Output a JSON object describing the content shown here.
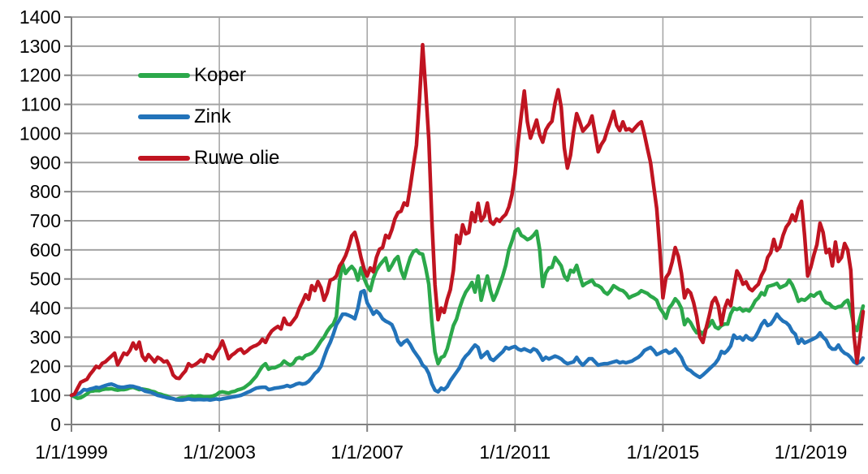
{
  "chart_data": {
    "type": "line",
    "title": "",
    "xlabel": "",
    "ylabel": "",
    "x_start": "1/1/1999",
    "x_end": "6/1/2020",
    "x_frequency": "monthly",
    "ylim": [
      0,
      1400
    ],
    "y_tick_step": 100,
    "y_tick_labels": [
      "0",
      "100",
      "200",
      "300",
      "400",
      "500",
      "600",
      "700",
      "800",
      "900",
      "1000",
      "1100",
      "1200",
      "1300",
      "1400"
    ],
    "x_ticks": [
      {
        "label": "1/1/1999",
        "month_index": 0
      },
      {
        "label": "1/1/2003",
        "month_index": 48
      },
      {
        "label": "1/1/2007",
        "month_index": 96
      },
      {
        "label": "1/1/2011",
        "month_index": 144
      },
      {
        "label": "1/1/2015",
        "month_index": 192
      },
      {
        "label": "1/1/2019",
        "month_index": 240
      }
    ],
    "grid": true,
    "grid_color": "#A3A3A3",
    "axis_color": "#808080",
    "legend_position": "top-left",
    "series": [
      {
        "name": "Koper",
        "color": "#2BA84A",
        "values": [
          100,
          95,
          90,
          92,
          98,
          105,
          114,
          115,
          118,
          116,
          120,
          122,
          122,
          123,
          120,
          118,
          120,
          120,
          122,
          126,
          128,
          124,
          120,
          122,
          120,
          118,
          114,
          112,
          106,
          104,
          100,
          98,
          92,
          88,
          86,
          90,
          92,
          92,
          96,
          98,
          96,
          98,
          98,
          95,
          95,
          96,
          98,
          102,
          110,
          112,
          110,
          108,
          112,
          114,
          119,
          122,
          126,
          134,
          142,
          154,
          166,
          184,
          200,
          209,
          190,
          195,
          195,
          200,
          205,
          218,
          210,
          204,
          210,
          226,
          230,
          226,
          237,
          240,
          245,
          255,
          270,
          287,
          300,
          320,
          335,
          345,
          371,
          491,
          552,
          519,
          533,
          543,
          530,
          496,
          538,
          502,
          477,
          460,
          502,
          530,
          547,
          560,
          572,
          530,
          547,
          566,
          577,
          530,
          502,
          540,
          574,
          594,
          599,
          588,
          585,
          538,
          482,
          350,
          250,
          209,
          230,
          235,
          260,
          300,
          340,
          362,
          400,
          431,
          455,
          470,
          488,
          455,
          510,
          427,
          470,
          510,
          460,
          427,
          450,
          480,
          510,
          547,
          600,
          630,
          664,
          672,
          650,
          644,
          635,
          640,
          650,
          664,
          600,
          474,
          520,
          538,
          540,
          574,
          560,
          545,
          510,
          496,
          530,
          524,
          547,
          510,
          477,
          485,
          490,
          496,
          480,
          477,
          470,
          455,
          448,
          460,
          477,
          470,
          463,
          460,
          450,
          435,
          441,
          445,
          450,
          460,
          455,
          450,
          441,
          435,
          427,
          400,
          385,
          365,
          400,
          413,
          432,
          420,
          399,
          343,
          362,
          350,
          330,
          315,
          320,
          310,
          330,
          340,
          357,
          335,
          329,
          340,
          345,
          345,
          380,
          400,
          395,
          400,
          390,
          395,
          390,
          405,
          425,
          435,
          453,
          445,
          474,
          477,
          480,
          485,
          470,
          475,
          480,
          496,
          480,
          455,
          423,
          430,
          427,
          435,
          446,
          441,
          450,
          455,
          430,
          418,
          415,
          404,
          400,
          405,
          407,
          420,
          427,
          393,
          340,
          323,
          365,
          407
        ]
      },
      {
        "name": "Zink",
        "color": "#2273BA",
        "values": [
          100,
          102,
          105,
          110,
          120,
          118,
          122,
          124,
          128,
          126,
          130,
          134,
          137,
          139,
          135,
          130,
          128,
          128,
          130,
          132,
          131,
          128,
          125,
          120,
          114,
          112,
          110,
          105,
          100,
          98,
          95,
          92,
          90,
          89,
          85,
          84,
          84,
          86,
          88,
          86,
          85,
          86,
          86,
          85,
          86,
          84,
          86,
          88,
          86,
          88,
          90,
          92,
          94,
          96,
          98,
          100,
          105,
          110,
          114,
          120,
          125,
          127,
          128,
          128,
          120,
          122,
          125,
          126,
          128,
          130,
          134,
          130,
          134,
          139,
          142,
          139,
          141,
          148,
          160,
          175,
          184,
          200,
          231,
          260,
          282,
          310,
          343,
          360,
          379,
          379,
          375,
          370,
          363,
          400,
          455,
          460,
          418,
          400,
          379,
          390,
          380,
          363,
          355,
          350,
          343,
          320,
          287,
          273,
          284,
          290,
          275,
          255,
          240,
          225,
          204,
          195,
          175,
          140,
          118,
          112,
          125,
          120,
          130,
          150,
          165,
          180,
          195,
          220,
          235,
          245,
          260,
          273,
          265,
          230,
          240,
          250,
          226,
          220,
          230,
          240,
          250,
          265,
          260,
          265,
          268,
          259,
          255,
          260,
          255,
          250,
          260,
          255,
          240,
          221,
          231,
          225,
          230,
          235,
          231,
          225,
          215,
          209,
          212,
          215,
          231,
          215,
          204,
          215,
          226,
          226,
          215,
          204,
          207,
          209,
          209,
          212,
          215,
          218,
          212,
          215,
          212,
          215,
          218,
          225,
          231,
          240,
          254,
          260,
          265,
          255,
          240,
          245,
          251,
          255,
          245,
          250,
          259,
          245,
          230,
          205,
          190,
          185,
          175,
          168,
          162,
          170,
          180,
          190,
          200,
          210,
          225,
          251,
          245,
          255,
          270,
          307,
          296,
          300,
          290,
          305,
          295,
          290,
          300,
          320,
          343,
          357,
          340,
          345,
          360,
          379,
          365,
          355,
          350,
          340,
          320,
          310,
          279,
          293,
          280,
          285,
          290,
          295,
          301,
          315,
          300,
          290,
          268,
          259,
          259,
          273,
          255,
          245,
          240,
          230,
          215,
          209,
          215,
          228
        ]
      },
      {
        "name": "Ruwe olie",
        "color": "#C01421",
        "values": [
          100,
          105,
          125,
          145,
          150,
          155,
          172,
          185,
          200,
          195,
          210,
          215,
          225,
          235,
          245,
          205,
          225,
          245,
          240,
          255,
          280,
          260,
          283,
          235,
          220,
          240,
          228,
          215,
          231,
          225,
          215,
          218,
          200,
          170,
          160,
          158,
          172,
          184,
          209,
          200,
          205,
          212,
          222,
          215,
          240,
          235,
          226,
          248,
          262,
          287,
          258,
          226,
          238,
          245,
          255,
          259,
          245,
          252,
          262,
          268,
          272,
          279,
          293,
          282,
          305,
          321,
          330,
          337,
          328,
          365,
          345,
          343,
          357,
          371,
          400,
          421,
          446,
          430,
          477,
          460,
          491,
          470,
          427,
          452,
          496,
          500,
          510,
          544,
          560,
          580,
          610,
          648,
          660,
          622,
          574,
          535,
          510,
          538,
          525,
          574,
          602,
          608,
          650,
          641,
          669,
          706,
          728,
          733,
          761,
          753,
          817,
          890,
          960,
          1120,
          1305,
          1150,
          980,
          700,
          480,
          360,
          400,
          385,
          430,
          463,
          530,
          650,
          622,
          686,
          655,
          660,
          728,
          697,
          760,
          700,
          715,
          761,
          697,
          688,
          706,
          698,
          712,
          722,
          747,
          789,
          860,
          970,
          1060,
          1146,
          1040,
          984,
          1015,
          1046,
          995,
          970,
          1012,
          1030,
          1042,
          1105,
          1150,
          1090,
          950,
          881,
          925,
          1005,
          1068,
          1040,
          1008,
          1020,
          1032,
          1060,
          1000,
          937,
          962,
          978,
          1012,
          1042,
          1076,
          1028,
          1010,
          1040,
          1012,
          1016,
          1008,
          1020,
          1032,
          1040,
          998,
          948,
          900,
          820,
          742,
          602,
          435,
          505,
          520,
          558,
          608,
          578,
          520,
          435,
          463,
          452,
          418,
          370,
          300,
          282,
          330,
          372,
          420,
          436,
          408,
          343,
          398,
          427,
          408,
          470,
          528,
          510,
          482,
          490,
          468,
          460,
          472,
          482,
          512,
          532,
          574,
          590,
          636,
          598,
          610,
          650,
          678,
          692,
          720,
          700,
          742,
          767,
          650,
          510,
          540,
          582,
          618,
          692,
          660,
          590,
          602,
          545,
          627,
          560,
          574,
          622,
          600,
          530,
          310,
          212,
          300,
          388
        ]
      }
    ]
  }
}
